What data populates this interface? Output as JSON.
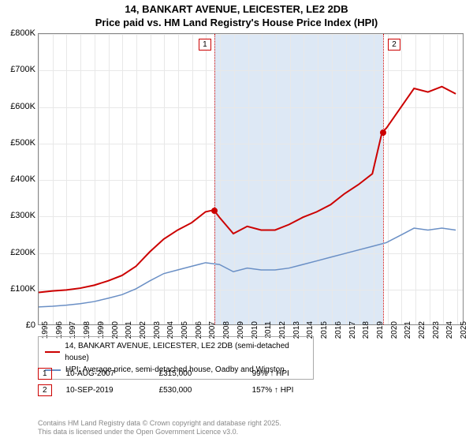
{
  "title": {
    "line1": "14, BANKART AVENUE, LEICESTER, LE2 2DB",
    "line2": "Price paid vs. HM Land Registry's House Price Index (HPI)"
  },
  "chart": {
    "type": "line",
    "background_color": "#ffffff",
    "grid_color": "#e8e8e8",
    "border_color": "#888888",
    "xlim": [
      1995,
      2025.5
    ],
    "ylim": [
      0,
      800000
    ],
    "ytick_step": 100000,
    "yticks": [
      "£0",
      "£100K",
      "£200K",
      "£300K",
      "£400K",
      "£500K",
      "£600K",
      "£700K",
      "£800K"
    ],
    "xticks": [
      "1995",
      "1996",
      "1997",
      "1998",
      "1999",
      "2000",
      "2001",
      "2002",
      "2003",
      "2004",
      "2005",
      "2006",
      "2007",
      "2008",
      "2009",
      "2010",
      "2011",
      "2012",
      "2013",
      "2014",
      "2015",
      "2016",
      "2017",
      "2018",
      "2019",
      "2020",
      "2021",
      "2022",
      "2023",
      "2024",
      "2025"
    ],
    "shaded_region": {
      "start": 2007.6,
      "end": 2019.7,
      "color": "#dde8f5"
    },
    "markers": [
      {
        "n": "1",
        "x": 2007.6,
        "y": 315000,
        "line_color": "#cc0000",
        "box_color": "#cc0000"
      },
      {
        "n": "2",
        "x": 2019.7,
        "y": 530000,
        "line_color": "#cc0000",
        "box_color": "#cc0000"
      }
    ],
    "series": [
      {
        "name": "property",
        "color": "#cc0000",
        "line_width": 2,
        "points": [
          [
            1995,
            88000
          ],
          [
            1996,
            92000
          ],
          [
            1997,
            95000
          ],
          [
            1998,
            100000
          ],
          [
            1999,
            108000
          ],
          [
            2000,
            120000
          ],
          [
            2001,
            135000
          ],
          [
            2002,
            160000
          ],
          [
            2003,
            200000
          ],
          [
            2004,
            235000
          ],
          [
            2005,
            260000
          ],
          [
            2006,
            280000
          ],
          [
            2007,
            310000
          ],
          [
            2007.6,
            315000
          ],
          [
            2008,
            295000
          ],
          [
            2009,
            250000
          ],
          [
            2010,
            270000
          ],
          [
            2011,
            260000
          ],
          [
            2012,
            260000
          ],
          [
            2013,
            275000
          ],
          [
            2014,
            295000
          ],
          [
            2015,
            310000
          ],
          [
            2016,
            330000
          ],
          [
            2017,
            360000
          ],
          [
            2018,
            385000
          ],
          [
            2019,
            415000
          ],
          [
            2019.7,
            530000
          ],
          [
            2020,
            540000
          ],
          [
            2021,
            595000
          ],
          [
            2022,
            650000
          ],
          [
            2023,
            640000
          ],
          [
            2024,
            655000
          ],
          [
            2025,
            635000
          ]
        ]
      },
      {
        "name": "hpi",
        "color": "#6a8fc5",
        "line_width": 1.5,
        "points": [
          [
            1995,
            48000
          ],
          [
            1996,
            50000
          ],
          [
            1997,
            53000
          ],
          [
            1998,
            57000
          ],
          [
            1999,
            63000
          ],
          [
            2000,
            72000
          ],
          [
            2001,
            82000
          ],
          [
            2002,
            98000
          ],
          [
            2003,
            120000
          ],
          [
            2004,
            140000
          ],
          [
            2005,
            150000
          ],
          [
            2006,
            160000
          ],
          [
            2007,
            170000
          ],
          [
            2008,
            165000
          ],
          [
            2009,
            145000
          ],
          [
            2010,
            155000
          ],
          [
            2011,
            150000
          ],
          [
            2012,
            150000
          ],
          [
            2013,
            155000
          ],
          [
            2014,
            165000
          ],
          [
            2015,
            175000
          ],
          [
            2016,
            185000
          ],
          [
            2017,
            195000
          ],
          [
            2018,
            205000
          ],
          [
            2019,
            215000
          ],
          [
            2020,
            225000
          ],
          [
            2021,
            245000
          ],
          [
            2022,
            265000
          ],
          [
            2023,
            260000
          ],
          [
            2024,
            265000
          ],
          [
            2025,
            260000
          ]
        ]
      }
    ]
  },
  "legend": {
    "items": [
      {
        "color": "#cc0000",
        "label": "14, BANKART AVENUE, LEICESTER, LE2 2DB (semi-detached house)"
      },
      {
        "color": "#6a8fc5",
        "label": "HPI: Average price, semi-detached house, Oadby and Wigston"
      }
    ]
  },
  "events": [
    {
      "n": "1",
      "date": "10-AUG-2007",
      "price": "£315,000",
      "pct": "99% ↑ HPI"
    },
    {
      "n": "2",
      "date": "10-SEP-2019",
      "price": "£530,000",
      "pct": "157% ↑ HPI"
    }
  ],
  "footer": {
    "line1": "Contains HM Land Registry data © Crown copyright and database right 2025.",
    "line2": "This data is licensed under the Open Government Licence v3.0."
  }
}
